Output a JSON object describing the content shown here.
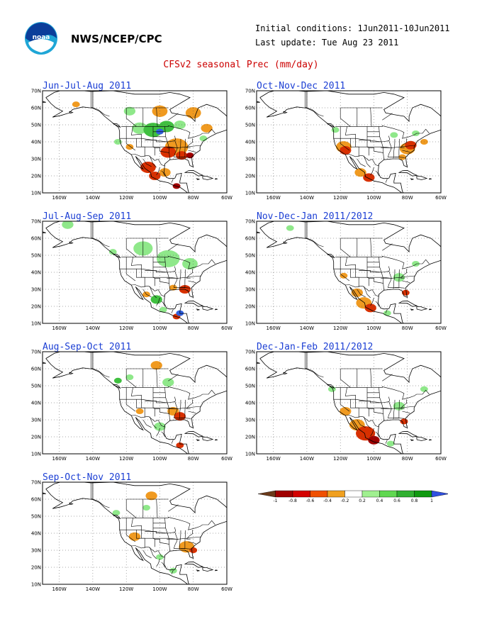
{
  "header": {
    "agency": "NWS/NCEP/CPC",
    "initial_conditions": "Initial conditions: 1Jun2011-10Jun2011",
    "last_update": "Last update: Tue Aug 23 2011",
    "title": "CFSv2 seasonal Prec (mm/day)"
  },
  "logo": {
    "text": "noaa",
    "colors": {
      "outer": "#1fa6d6",
      "inner": "#0b3e9a"
    }
  },
  "axes": {
    "lat_labels": [
      "70N",
      "60N",
      "50N",
      "40N",
      "30N",
      "20N",
      "10N"
    ],
    "lon_labels": [
      "160W",
      "140W",
      "120W",
      "100W",
      "80W",
      "60W"
    ]
  },
  "panels": [
    {
      "title": "Jun-Jul-Aug 2011",
      "blobs": [
        {
          "lon": -118,
          "lat": 58,
          "r": 3,
          "c": "g1"
        },
        {
          "lon": -112,
          "lat": 48,
          "r": 4,
          "c": "g1"
        },
        {
          "lon": -104,
          "lat": 47,
          "r": 5,
          "c": "g2"
        },
        {
          "lon": -96,
          "lat": 49,
          "r": 4,
          "c": "g2"
        },
        {
          "lon": -100,
          "lat": 46,
          "r": 2,
          "c": "b1"
        },
        {
          "lon": -88,
          "lat": 50,
          "r": 3,
          "c": "g1"
        },
        {
          "lon": -125,
          "lat": 40,
          "r": 2,
          "c": "g1"
        },
        {
          "lon": -100,
          "lat": 58,
          "r": 4,
          "c": "o2"
        },
        {
          "lon": -80,
          "lat": 57,
          "r": 4,
          "c": "o2"
        },
        {
          "lon": -90,
          "lat": 37,
          "r": 6,
          "c": "o2"
        },
        {
          "lon": -95,
          "lat": 34,
          "r": 4,
          "c": "r1"
        },
        {
          "lon": -87,
          "lat": 32,
          "r": 3,
          "c": "r1"
        },
        {
          "lon": -82,
          "lat": 32,
          "r": 2,
          "c": "r2"
        },
        {
          "lon": -107,
          "lat": 25,
          "r": 4,
          "c": "r1"
        },
        {
          "lon": -97,
          "lat": 22,
          "r": 3,
          "c": "o2"
        },
        {
          "lon": -103,
          "lat": 20,
          "r": 3,
          "c": "r1"
        },
        {
          "lon": -90,
          "lat": 14,
          "r": 2,
          "c": "r2"
        },
        {
          "lon": -72,
          "lat": 48,
          "r": 3,
          "c": "o2"
        },
        {
          "lon": -74,
          "lat": 42,
          "r": 2,
          "c": "g1"
        },
        {
          "lon": -150,
          "lat": 62,
          "r": 2,
          "c": "o2"
        },
        {
          "lon": -118,
          "lat": 37,
          "r": 2,
          "c": "o2"
        }
      ]
    },
    {
      "title": "Oct-Nov-Dec 2011",
      "blobs": [
        {
          "lon": -118,
          "lat": 37,
          "r": 4,
          "c": "o2"
        },
        {
          "lon": -117,
          "lat": 35,
          "r": 3,
          "c": "r1"
        },
        {
          "lon": -108,
          "lat": 22,
          "r": 3,
          "c": "o2"
        },
        {
          "lon": -103,
          "lat": 19,
          "r": 3,
          "c": "r1"
        },
        {
          "lon": -80,
          "lat": 36,
          "r": 4,
          "c": "o2"
        },
        {
          "lon": -78,
          "lat": 38,
          "r": 3,
          "c": "r1"
        },
        {
          "lon": -83,
          "lat": 31,
          "r": 2,
          "c": "o2"
        },
        {
          "lon": -123,
          "lat": 47,
          "r": 2,
          "c": "g1"
        },
        {
          "lon": -75,
          "lat": 45,
          "r": 2,
          "c": "g1"
        },
        {
          "lon": -88,
          "lat": 44,
          "r": 2,
          "c": "g1"
        },
        {
          "lon": -70,
          "lat": 40,
          "r": 2,
          "c": "o2"
        }
      ]
    },
    {
      "title": "Jul-Aug-Sep 2011",
      "blobs": [
        {
          "lon": -110,
          "lat": 54,
          "r": 5,
          "c": "g1"
        },
        {
          "lon": -95,
          "lat": 48,
          "r": 6,
          "c": "g1"
        },
        {
          "lon": -82,
          "lat": 45,
          "r": 4,
          "c": "g1"
        },
        {
          "lon": -128,
          "lat": 52,
          "r": 2,
          "c": "g1"
        },
        {
          "lon": -155,
          "lat": 68,
          "r": 3,
          "c": "g1"
        },
        {
          "lon": -102,
          "lat": 24,
          "r": 3,
          "c": "g2"
        },
        {
          "lon": -90,
          "lat": 14,
          "r": 2,
          "c": "r1"
        },
        {
          "lon": -88,
          "lat": 16,
          "r": 2,
          "c": "b1"
        },
        {
          "lon": -85,
          "lat": 30,
          "r": 3,
          "c": "r1"
        },
        {
          "lon": -92,
          "lat": 31,
          "r": 2,
          "c": "o2"
        },
        {
          "lon": -108,
          "lat": 27,
          "r": 2,
          "c": "o2"
        },
        {
          "lon": -98,
          "lat": 18,
          "r": 2,
          "c": "g1"
        }
      ]
    },
    {
      "title": "Nov-Dec-Jan 2011/2012",
      "blobs": [
        {
          "lon": -110,
          "lat": 28,
          "r": 3,
          "c": "o2"
        },
        {
          "lon": -106,
          "lat": 22,
          "r": 4,
          "c": "o2"
        },
        {
          "lon": -102,
          "lat": 19,
          "r": 3,
          "c": "r1"
        },
        {
          "lon": -118,
          "lat": 38,
          "r": 2,
          "c": "o2"
        },
        {
          "lon": -81,
          "lat": 28,
          "r": 2,
          "c": "r1"
        },
        {
          "lon": -85,
          "lat": 37,
          "r": 3,
          "c": "g1"
        },
        {
          "lon": -150,
          "lat": 66,
          "r": 2,
          "c": "g1"
        },
        {
          "lon": -92,
          "lat": 16,
          "r": 2,
          "c": "g1"
        },
        {
          "lon": -75,
          "lat": 45,
          "r": 2,
          "c": "g1"
        }
      ]
    },
    {
      "title": "Aug-Sep-Oct 2011",
      "blobs": [
        {
          "lon": -102,
          "lat": 62,
          "r": 3,
          "c": "o2"
        },
        {
          "lon": -92,
          "lat": 35,
          "r": 3,
          "c": "o2"
        },
        {
          "lon": -88,
          "lat": 32,
          "r": 3,
          "c": "r1"
        },
        {
          "lon": -118,
          "lat": 55,
          "r": 2,
          "c": "g1"
        },
        {
          "lon": -95,
          "lat": 52,
          "r": 3,
          "c": "g1"
        },
        {
          "lon": -100,
          "lat": 26,
          "r": 3,
          "c": "g1"
        },
        {
          "lon": -88,
          "lat": 15,
          "r": 2,
          "c": "r1"
        },
        {
          "lon": -112,
          "lat": 35,
          "r": 2,
          "c": "o2"
        },
        {
          "lon": -125,
          "lat": 53,
          "r": 2,
          "c": "g2"
        }
      ]
    },
    {
      "title": "Dec-Jan-Feb 2011/2012",
      "blobs": [
        {
          "lon": -117,
          "lat": 35,
          "r": 3,
          "c": "o2"
        },
        {
          "lon": -110,
          "lat": 27,
          "r": 4,
          "c": "o2"
        },
        {
          "lon": -105,
          "lat": 22,
          "r": 5,
          "c": "r1"
        },
        {
          "lon": -100,
          "lat": 18,
          "r": 3,
          "c": "r2"
        },
        {
          "lon": -82,
          "lat": 29,
          "r": 2,
          "c": "r1"
        },
        {
          "lon": -85,
          "lat": 38,
          "r": 3,
          "c": "g1"
        },
        {
          "lon": -125,
          "lat": 48,
          "r": 2,
          "c": "g1"
        },
        {
          "lon": -70,
          "lat": 48,
          "r": 2,
          "c": "g1"
        },
        {
          "lon": -90,
          "lat": 16,
          "r": 2,
          "c": "g1"
        }
      ]
    },
    {
      "title": "Sep-Oct-Nov 2011",
      "blobs": [
        {
          "lon": -105,
          "lat": 62,
          "r": 3,
          "c": "o2"
        },
        {
          "lon": -115,
          "lat": 38,
          "r": 3,
          "c": "o2"
        },
        {
          "lon": -84,
          "lat": 32,
          "r": 4,
          "c": "o2"
        },
        {
          "lon": -80,
          "lat": 30,
          "r": 2,
          "c": "r1"
        },
        {
          "lon": -108,
          "lat": 55,
          "r": 2,
          "c": "g1"
        },
        {
          "lon": -126,
          "lat": 52,
          "r": 2,
          "c": "g1"
        },
        {
          "lon": -100,
          "lat": 26,
          "r": 2,
          "c": "g1"
        },
        {
          "lon": -92,
          "lat": 18,
          "r": 2,
          "c": "g1"
        }
      ]
    }
  ],
  "legend": {
    "labels": [
      "-1",
      "-0.8",
      "-0.6",
      "-0.4",
      "-0.2",
      "0.2",
      "0.4",
      "0.6",
      "0.8",
      "1"
    ],
    "colors": [
      "#6b3a1a",
      "#a00000",
      "#d40000",
      "#f05000",
      "#f0a020",
      "#ffffff",
      "#a0f090",
      "#60d850",
      "#30b030",
      "#109a10",
      "#3050e0"
    ]
  },
  "palette": {
    "r2": "#a00000",
    "r1": "#d83000",
    "o2": "#f09a20",
    "g1": "#8fe88a",
    "g2": "#40c040",
    "b1": "#3060e0"
  }
}
